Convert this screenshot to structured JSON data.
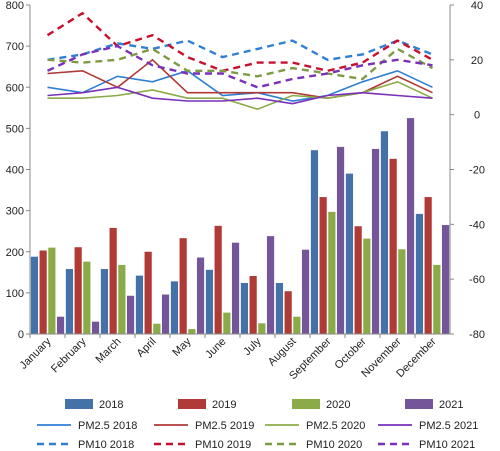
{
  "chart_data": {
    "type": "bar",
    "categories": [
      "January",
      "February",
      "March",
      "April",
      "May",
      "June",
      "July",
      "August",
      "September",
      "October",
      "November",
      "December"
    ],
    "y_left": {
      "ticks": [
        "0",
        "100",
        "200",
        "300",
        "400",
        "500",
        "600",
        "700",
        "800"
      ],
      "ylim": [
        0,
        800
      ]
    },
    "y_right": {
      "ticks": [
        "-80",
        "-60",
        "-40",
        "-20",
        "0",
        "20",
        "40"
      ],
      "ylim": [
        -80,
        40
      ]
    },
    "bar_series": [
      {
        "name": "2018",
        "color": "#4472a8",
        "values": [
          188,
          158,
          158,
          142,
          128,
          156,
          124,
          124,
          447,
          390,
          493,
          292
        ]
      },
      {
        "name": "2019",
        "color": "#b03a36",
        "values": [
          203,
          211,
          258,
          200,
          233,
          263,
          141,
          104,
          333,
          262,
          426,
          333
        ]
      },
      {
        "name": "2020",
        "color": "#8bab48",
        "values": [
          210,
          176,
          168,
          25,
          12,
          52,
          26,
          42,
          297,
          232,
          206,
          168
        ]
      },
      {
        "name": "2021",
        "color": "#74559a",
        "values": [
          42,
          30,
          93,
          96,
          186,
          222,
          238,
          205,
          455,
          450,
          525,
          265
        ]
      }
    ],
    "line_series": [
      {
        "name": "PM2.5 2018",
        "color": "#2f7fd4",
        "dash": false,
        "values": [
          10,
          8,
          14,
          12,
          16,
          7,
          8,
          5,
          7,
          12,
          16,
          10
        ]
      },
      {
        "name": "PM2.5 2019",
        "color": "#b03a36",
        "dash": false,
        "values": [
          15,
          16,
          10,
          20,
          8,
          8,
          8,
          8,
          6,
          8,
          14,
          8
        ]
      },
      {
        "name": "PM2.5 2020",
        "color": "#8bab48",
        "dash": false,
        "values": [
          6,
          6,
          7,
          9,
          6,
          6,
          2,
          7,
          6,
          8,
          12,
          6
        ]
      },
      {
        "name": "PM2.5 2021",
        "color": "#7a30b8",
        "dash": false,
        "values": [
          7,
          8,
          10,
          6,
          5,
          5,
          6,
          4,
          7,
          8,
          7,
          6
        ]
      },
      {
        "name": "PM10 2018",
        "color": "#2f7fd4",
        "dash": true,
        "values": [
          20,
          22,
          26,
          24,
          27,
          21,
          24,
          27,
          20,
          22,
          27,
          22
        ]
      },
      {
        "name": "PM10 2019",
        "color": "#c8102e",
        "dash": true,
        "values": [
          29,
          37,
          25,
          29,
          21,
          16,
          19,
          19,
          16,
          19,
          27,
          20
        ]
      },
      {
        "name": "PM10 2020",
        "color": "#7e9a44",
        "dash": true,
        "values": [
          20,
          19,
          20,
          24,
          16,
          16,
          14,
          17,
          15,
          13,
          24,
          17
        ]
      },
      {
        "name": "PM10 2021",
        "color": "#7a30b8",
        "dash": true,
        "values": [
          16,
          22,
          25,
          18,
          15,
          15,
          10,
          13,
          15,
          18,
          20,
          18
        ]
      }
    ]
  }
}
